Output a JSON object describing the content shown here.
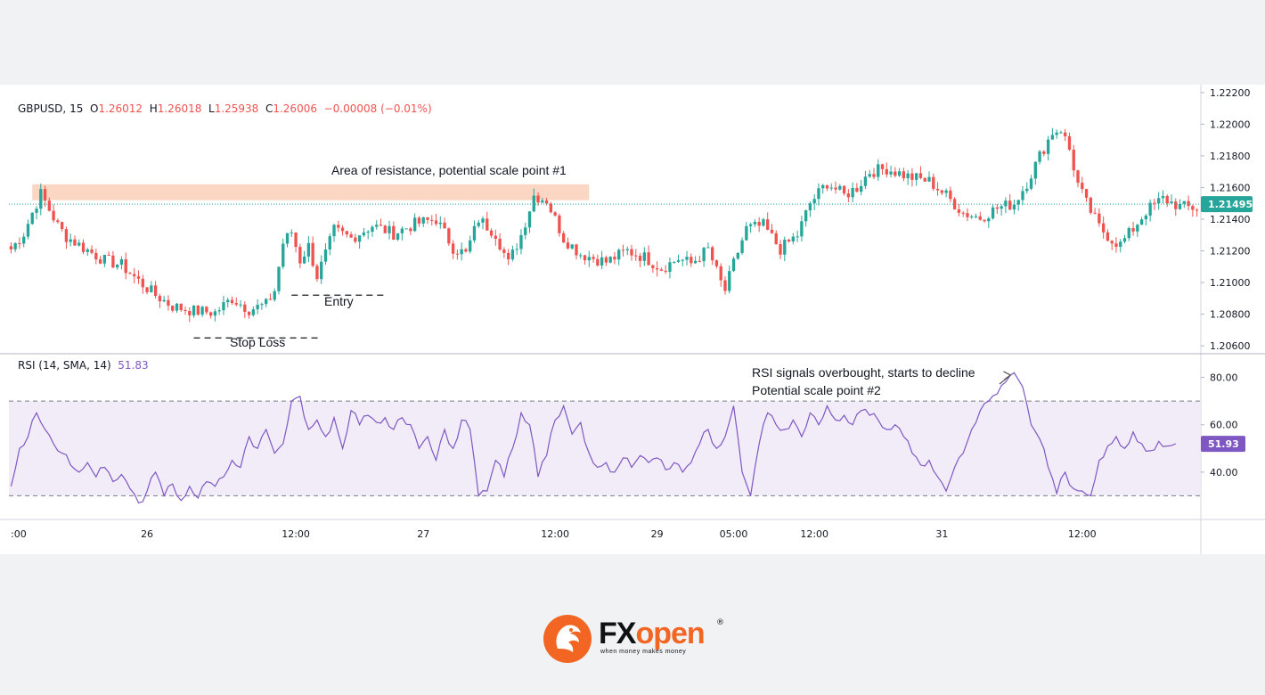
{
  "chart_data": [
    {
      "type": "candlestick",
      "symbol": "GBPUSD",
      "interval": "15",
      "ohlc_header": {
        "open_label": "O",
        "open": "1.26012",
        "high_label": "H",
        "high": "1.26018",
        "low_label": "L",
        "low": "1.25938",
        "close_label": "C",
        "close": "1.26006",
        "change": "−0.00008 (−0.01%)"
      },
      "y_ticks": [
        "1.22200",
        "1.22000",
        "1.21800",
        "1.21600",
        "1.21400",
        "1.21200",
        "1.21000",
        "1.20800",
        "1.20600"
      ],
      "ylim": [
        1.2055,
        1.2225
      ],
      "last_price": "1.21495",
      "path": [
        [
          0,
          1.2121
        ],
        [
          3,
          1.2131
        ],
        [
          5,
          1.2144
        ],
        [
          7,
          1.2156
        ],
        [
          9,
          1.2146
        ],
        [
          11,
          1.2136
        ],
        [
          13,
          1.2129
        ],
        [
          17,
          1.2122
        ],
        [
          22,
          1.2114
        ],
        [
          26,
          1.2111
        ],
        [
          30,
          1.2101
        ],
        [
          34,
          1.2092
        ],
        [
          38,
          1.2085
        ],
        [
          43,
          1.2082
        ],
        [
          48,
          1.2081
        ],
        [
          52,
          1.209
        ],
        [
          56,
          1.2083
        ],
        [
          60,
          1.2086
        ],
        [
          62,
          1.2095
        ],
        [
          64,
          1.2125
        ],
        [
          66,
          1.2132
        ],
        [
          68,
          1.2114
        ],
        [
          70,
          1.2123
        ],
        [
          72,
          1.2104
        ],
        [
          74,
          1.2118
        ],
        [
          76,
          1.2133
        ],
        [
          80,
          1.2128
        ],
        [
          85,
          1.2136
        ],
        [
          90,
          1.2131
        ],
        [
          95,
          1.2137
        ],
        [
          100,
          1.214
        ],
        [
          104,
          1.2122
        ],
        [
          107,
          1.2118
        ],
        [
          110,
          1.214
        ],
        [
          114,
          1.2131
        ],
        [
          117,
          1.2112
        ],
        [
          120,
          1.213
        ],
        [
          123,
          1.2155
        ],
        [
          126,
          1.2152
        ],
        [
          128,
          1.214
        ],
        [
          130,
          1.2128
        ],
        [
          134,
          1.2118
        ],
        [
          140,
          1.2113
        ],
        [
          145,
          1.212
        ],
        [
          149,
          1.2116
        ],
        [
          153,
          1.2109
        ],
        [
          157,
          1.2115
        ],
        [
          160,
          1.2112
        ],
        [
          164,
          1.2121
        ],
        [
          167,
          1.21
        ],
        [
          168,
          1.2095
        ],
        [
          170,
          1.2112
        ],
        [
          173,
          1.2134
        ],
        [
          177,
          1.2136
        ],
        [
          181,
          1.2121
        ],
        [
          185,
          1.213
        ],
        [
          188,
          1.215
        ],
        [
          192,
          1.2163
        ],
        [
          196,
          1.2155
        ],
        [
          199,
          1.216
        ],
        [
          202,
          1.217
        ],
        [
          206,
          1.2172
        ],
        [
          211,
          1.2167
        ],
        [
          216,
          1.2164
        ],
        [
          220,
          1.2155
        ],
        [
          224,
          1.2144
        ],
        [
          228,
          1.2141
        ],
        [
          232,
          1.2147
        ],
        [
          236,
          1.215
        ],
        [
          239,
          1.2163
        ],
        [
          242,
          1.218
        ],
        [
          245,
          1.2195
        ],
        [
          247,
          1.2197
        ],
        [
          249,
          1.2184
        ],
        [
          251,
          1.2162
        ],
        [
          253,
          1.215
        ],
        [
          256,
          1.2135
        ],
        [
          259,
          1.2127
        ],
        [
          261,
          1.2124
        ],
        [
          264,
          1.2134
        ],
        [
          267,
          1.2145
        ],
        [
          271,
          1.2153
        ],
        [
          275,
          1.2148
        ],
        [
          279,
          1.2147
        ]
      ],
      "x_ticks": [
        {
          "i": 0,
          "label": ":00"
        },
        {
          "i": 32,
          "label": "26"
        },
        {
          "i": 67,
          "label": "12:00"
        },
        {
          "i": 97,
          "label": "27"
        },
        {
          "i": 128,
          "label": "12:00"
        },
        {
          "i": 152,
          "label": "29"
        },
        {
          "i": 170,
          "label": "05:00"
        },
        {
          "i": 189,
          "label": "12:00"
        },
        {
          "i": 219,
          "label": "31"
        },
        {
          "i": 252,
          "label": "12:00"
        }
      ],
      "annotations": {
        "resistance": {
          "text": "Area of resistance, potential scale point #1",
          "y_from": 1.2152,
          "y_to": 1.2162,
          "i_from": 5,
          "i_to": 136
        },
        "entry": {
          "text": "Entry",
          "price": 1.2092,
          "i_from": 66,
          "i_to": 88
        },
        "stop_loss": {
          "text": "Stop Loss",
          "price": 1.2065,
          "i_from": 43,
          "i_to": 73
        }
      },
      "colors": {
        "up": "#26a69a",
        "down": "#ef5350",
        "resistance": "#fbd3bd",
        "last_price_bg": "#26a69a"
      }
    },
    {
      "type": "line",
      "indicator": "RSI",
      "label": "RSI (14, SMA, 14)",
      "value": "51.83",
      "last_value": "51.93",
      "y_ticks": [
        "80.00",
        "60.00",
        "40.00"
      ],
      "ylim": [
        20,
        90
      ],
      "band": [
        30,
        70
      ],
      "points": [
        [
          0,
          34
        ],
        [
          2,
          50
        ],
        [
          4,
          55
        ],
        [
          6,
          65
        ],
        [
          8,
          58
        ],
        [
          10,
          52
        ],
        [
          12,
          48
        ],
        [
          14,
          43
        ],
        [
          16,
          40
        ],
        [
          18,
          44
        ],
        [
          20,
          38
        ],
        [
          22,
          42
        ],
        [
          24,
          36
        ],
        [
          26,
          39
        ],
        [
          28,
          33
        ],
        [
          30,
          27
        ],
        [
          32,
          32
        ],
        [
          34,
          40
        ],
        [
          36,
          30
        ],
        [
          38,
          35
        ],
        [
          40,
          28
        ],
        [
          42,
          34
        ],
        [
          44,
          29
        ],
        [
          46,
          36
        ],
        [
          48,
          34
        ],
        [
          50,
          38
        ],
        [
          52,
          45
        ],
        [
          54,
          42
        ],
        [
          56,
          55
        ],
        [
          58,
          50
        ],
        [
          60,
          58
        ],
        [
          62,
          48
        ],
        [
          64,
          52
        ],
        [
          66,
          70
        ],
        [
          68,
          72
        ],
        [
          70,
          58
        ],
        [
          72,
          62
        ],
        [
          74,
          55
        ],
        [
          76,
          63
        ],
        [
          78,
          50
        ],
        [
          80,
          66
        ],
        [
          82,
          60
        ],
        [
          84,
          64
        ],
        [
          86,
          61
        ],
        [
          88,
          63
        ],
        [
          90,
          58
        ],
        [
          92,
          63
        ],
        [
          94,
          60
        ],
        [
          96,
          50
        ],
        [
          98,
          55
        ],
        [
          100,
          45
        ],
        [
          102,
          58
        ],
        [
          104,
          50
        ],
        [
          106,
          62
        ],
        [
          108,
          58
        ],
        [
          110,
          30
        ],
        [
          112,
          32
        ],
        [
          114,
          45
        ],
        [
          116,
          38
        ],
        [
          118,
          50
        ],
        [
          120,
          65
        ],
        [
          122,
          60
        ],
        [
          124,
          38
        ],
        [
          126,
          47
        ],
        [
          128,
          62
        ],
        [
          130,
          68
        ],
        [
          132,
          56
        ],
        [
          134,
          61
        ],
        [
          136,
          48
        ],
        [
          138,
          42
        ],
        [
          140,
          44
        ],
        [
          142,
          40
        ],
        [
          144,
          46
        ],
        [
          146,
          42
        ],
        [
          148,
          47
        ],
        [
          150,
          44
        ],
        [
          152,
          46
        ],
        [
          154,
          41
        ],
        [
          156,
          44
        ],
        [
          158,
          40
        ],
        [
          160,
          44
        ],
        [
          162,
          52
        ],
        [
          164,
          58
        ],
        [
          166,
          50
        ],
        [
          168,
          55
        ],
        [
          170,
          68
        ],
        [
          172,
          40
        ],
        [
          174,
          30
        ],
        [
          176,
          52
        ],
        [
          178,
          65
        ],
        [
          180,
          60
        ],
        [
          182,
          58
        ],
        [
          184,
          62
        ],
        [
          186,
          55
        ],
        [
          188,
          65
        ],
        [
          190,
          60
        ],
        [
          192,
          68
        ],
        [
          194,
          62
        ],
        [
          196,
          64
        ],
        [
          198,
          60
        ],
        [
          200,
          66
        ],
        [
          202,
          64
        ],
        [
          204,
          62
        ],
        [
          206,
          58
        ],
        [
          208,
          60
        ],
        [
          210,
          55
        ],
        [
          212,
          48
        ],
        [
          214,
          43
        ],
        [
          216,
          45
        ],
        [
          218,
          38
        ],
        [
          220,
          32
        ],
        [
          222,
          42
        ],
        [
          224,
          48
        ],
        [
          226,
          58
        ],
        [
          228,
          66
        ],
        [
          230,
          70
        ],
        [
          232,
          73
        ],
        [
          234,
          78
        ],
        [
          236,
          82
        ],
        [
          237,
          79
        ],
        [
          238,
          76
        ],
        [
          240,
          60
        ],
        [
          242,
          54
        ],
        [
          244,
          42
        ],
        [
          246,
          31
        ],
        [
          248,
          40
        ],
        [
          250,
          33
        ],
        [
          252,
          32
        ],
        [
          254,
          30
        ],
        [
          256,
          45
        ],
        [
          258,
          51
        ],
        [
          260,
          55
        ],
        [
          262,
          50
        ],
        [
          264,
          57
        ],
        [
          266,
          52
        ],
        [
          268,
          49
        ],
        [
          270,
          53
        ],
        [
          272,
          51
        ],
        [
          274,
          52
        ]
      ],
      "annotations": {
        "overbought": {
          "line1": "RSI signals overbought, starts to decline",
          "line2": "Potential scale point #2",
          "target_i": 236,
          "target_v": 81
        }
      },
      "colors": {
        "line": "#7e57c2",
        "band_fill": "#ede7f6",
        "band_line": "#787b86",
        "last_value_bg": "#7e57c2"
      }
    }
  ],
  "brand": {
    "logo_fx": "FX",
    "logo_open": "open",
    "tagline": "when money makes money",
    "reg": "®"
  }
}
